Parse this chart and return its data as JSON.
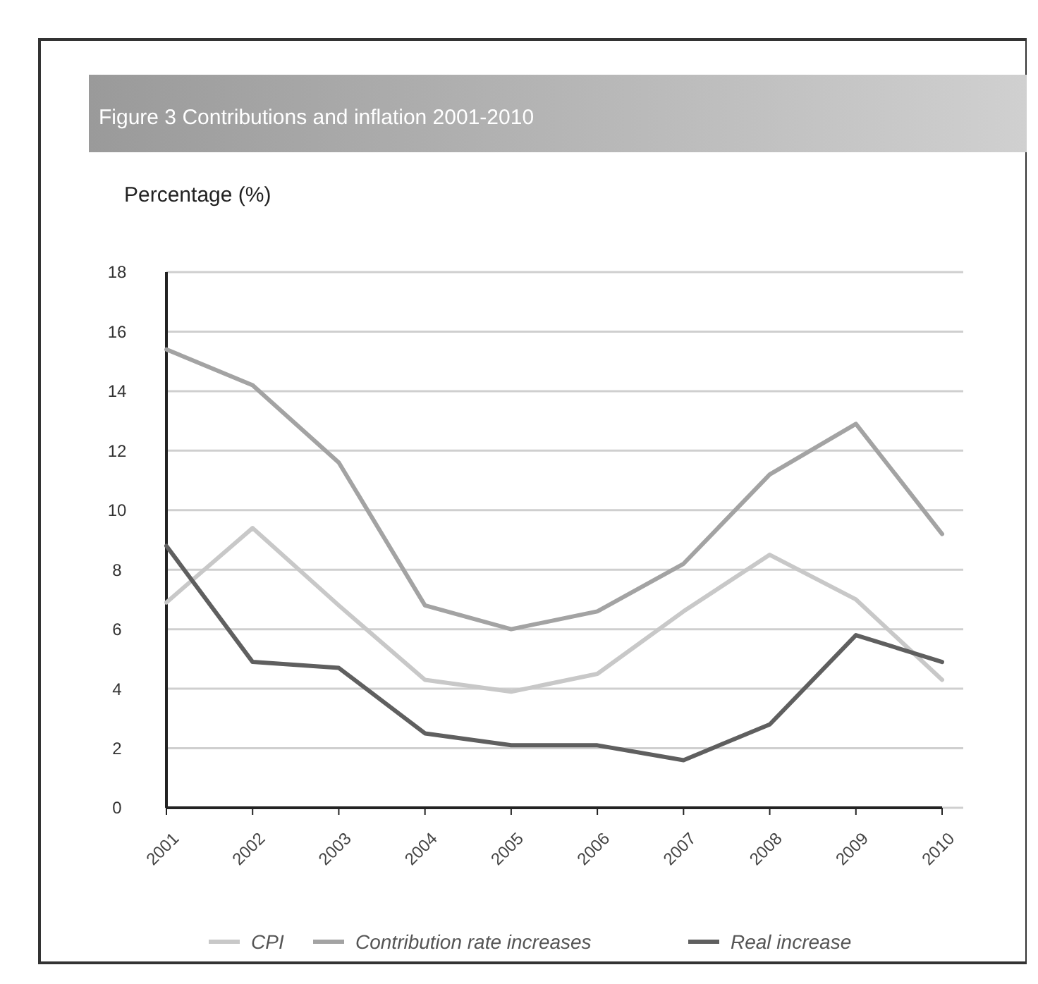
{
  "chart_data": {
    "type": "line",
    "title": "Figure 3 Contributions and inflation 2001-2010",
    "ylabel": "Percentage (%)",
    "categories": [
      "2001",
      "2002",
      "2003",
      "2004",
      "2005",
      "2006",
      "2007",
      "2008",
      "2009",
      "2010"
    ],
    "series": [
      {
        "name": "CPI",
        "color": "#c8c8c8",
        "values": [
          6.9,
          9.4,
          6.8,
          4.3,
          3.9,
          4.5,
          6.6,
          8.5,
          7.0,
          4.3
        ]
      },
      {
        "name": "Contribution rate increases",
        "color": "#a3a3a3",
        "values": [
          15.4,
          14.2,
          11.6,
          6.8,
          6.0,
          6.6,
          8.2,
          11.2,
          12.9,
          9.2
        ]
      },
      {
        "name": "Real increase",
        "color": "#5f5f5f",
        "values": [
          8.8,
          4.9,
          4.7,
          2.5,
          2.1,
          2.1,
          1.6,
          2.8,
          5.8,
          4.9
        ]
      }
    ],
    "ylim": [
      0,
      18
    ],
    "yticks": [
      0,
      2,
      4,
      6,
      8,
      10,
      12,
      14,
      16,
      18
    ],
    "grid": "y",
    "legend": "bottom",
    "marker": "none",
    "line_style": "solid"
  }
}
